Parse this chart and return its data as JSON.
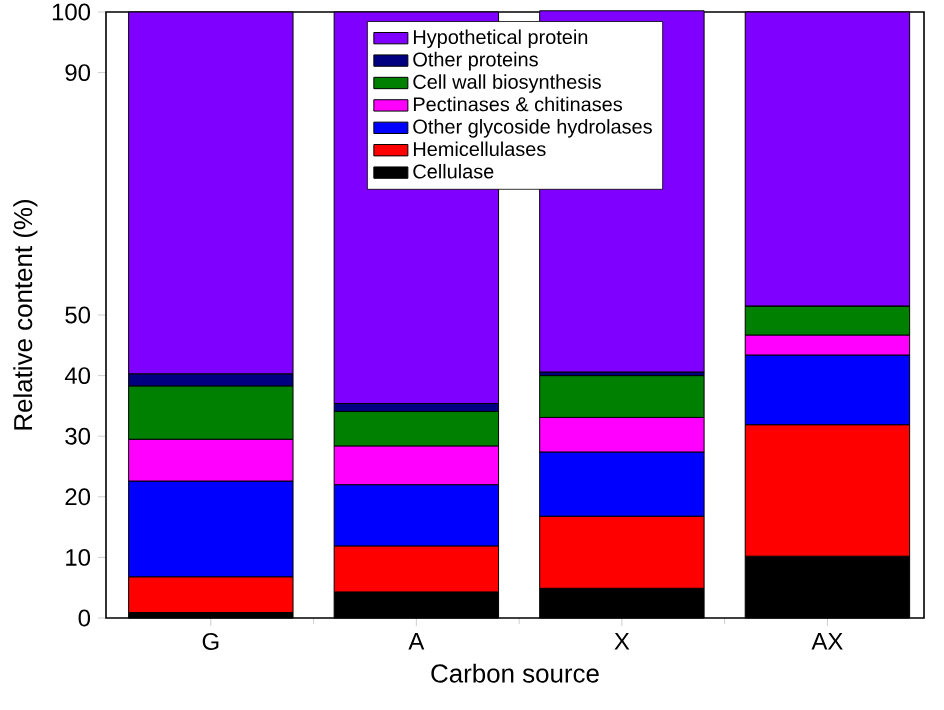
{
  "chart_data": {
    "type": "bar",
    "stacked": true,
    "xlabel": "Carbon source",
    "ylabel": "Relative content (%)",
    "categories": [
      "G",
      "A",
      "X",
      "AX"
    ],
    "ylim": [
      0,
      100
    ],
    "yticks": [
      0,
      10,
      20,
      30,
      40,
      50,
      90,
      100
    ],
    "legend": "top",
    "series": [
      {
        "name": "Cellulase",
        "color": "#000000",
        "values": [
          0.9,
          4.3,
          4.9,
          10.2
        ]
      },
      {
        "name": "Hemicellulases",
        "color": "#ff0000",
        "values": [
          5.9,
          7.6,
          11.9,
          21.7
        ]
      },
      {
        "name": "Other glycoside hydrolases",
        "color": "#0000ff",
        "values": [
          15.8,
          10.1,
          10.6,
          11.5
        ]
      },
      {
        "name": "Pectinases & chitinases",
        "color": "#ff00ff",
        "values": [
          6.9,
          6.4,
          5.7,
          3.3
        ]
      },
      {
        "name": "Cell wall biosynthesis",
        "color": "#008000",
        "values": [
          8.8,
          5.7,
          6.9,
          4.8
        ]
      },
      {
        "name": "Other proteins",
        "color": "#000080",
        "values": [
          2.0,
          1.3,
          0.6,
          0
        ]
      },
      {
        "name": "Hypothetical protein",
        "color": "#8000ff",
        "values": [
          59.7,
          64.6,
          59.6,
          48.5
        ]
      }
    ]
  }
}
